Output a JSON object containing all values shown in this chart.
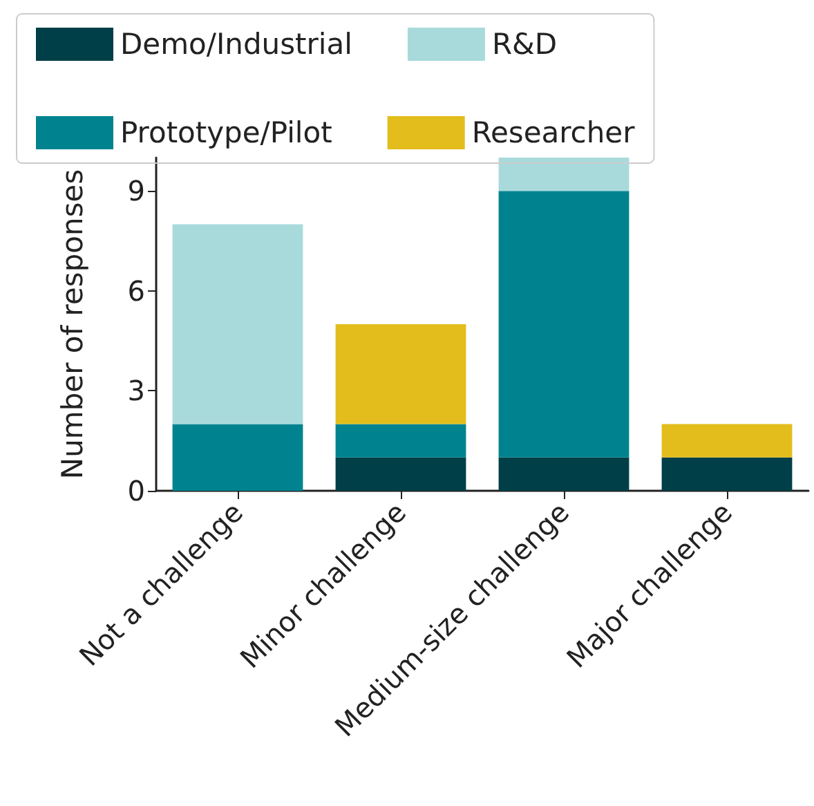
{
  "chart_data": {
    "type": "bar",
    "stacked": true,
    "ylabel": "Number of responses",
    "categories": [
      "Not a challenge",
      "Minor challenge",
      "Medium-size challenge",
      "Major challenge"
    ],
    "series": [
      {
        "name": "Demo/Industrial",
        "color": "#003f47",
        "values": [
          0,
          1,
          1,
          1
        ]
      },
      {
        "name": "Prototype/Pilot",
        "color": "#00838f",
        "values": [
          2,
          1,
          8,
          0
        ]
      },
      {
        "name": "R&D",
        "color": "#a8dadc",
        "values": [
          6,
          0,
          1,
          0
        ]
      },
      {
        "name": "Researcher",
        "color": "#e3bd1b",
        "values": [
          0,
          3,
          0,
          1
        ]
      }
    ],
    "ylim": [
      0,
      10
    ],
    "yticks": [
      0,
      3,
      6,
      9
    ],
    "grid": false,
    "legend": "top"
  }
}
